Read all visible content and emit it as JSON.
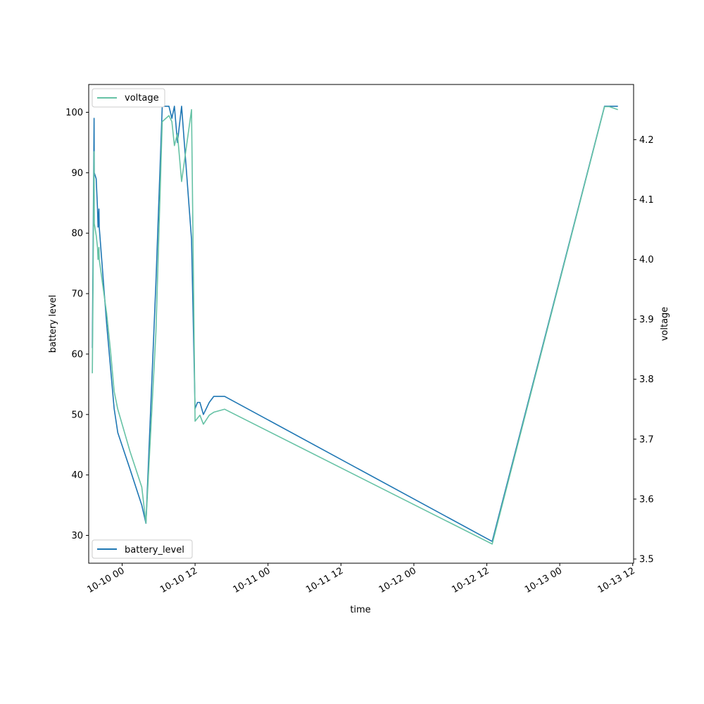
{
  "chart_data": {
    "type": "line",
    "xlabel": "time",
    "ylabel": "battery level",
    "y2label": "voltage",
    "legend_placement": {
      "battery_level": "lower-left",
      "voltage": "upper-left"
    },
    "grid": false,
    "x_ticks": [
      {
        "t": "2023-10-10T00:00",
        "label": "10-10 00"
      },
      {
        "t": "2023-10-10T12:00",
        "label": "10-10 12"
      },
      {
        "t": "2023-10-11T00:00",
        "label": "10-11 00"
      },
      {
        "t": "2023-10-11T12:00",
        "label": "10-11 12"
      },
      {
        "t": "2023-10-12T00:00",
        "label": "10-12 00"
      },
      {
        "t": "2023-10-12T12:00",
        "label": "10-12 12"
      },
      {
        "t": "2023-10-13T00:00",
        "label": "10-13 00"
      },
      {
        "t": "2023-10-13T12:00",
        "label": "10-13 12"
      }
    ],
    "xlim": [
      "2023-10-09T18:30",
      "2023-10-13T12:09"
    ],
    "ylim": [
      25.4,
      104.6
    ],
    "y2lim": [
      3.493,
      4.292
    ],
    "y_ticks": [
      30,
      40,
      50,
      60,
      70,
      80,
      90,
      100
    ],
    "y2_ticks": [
      3.5,
      3.6,
      3.7,
      3.8,
      3.9,
      4.0,
      4.1,
      4.2
    ],
    "series": [
      {
        "name": "battery_level",
        "axis": "left",
        "color": "#1f77b4",
        "points": [
          [
            "2023-10-09T19:06",
            61
          ],
          [
            "2023-10-09T19:23",
            99
          ],
          [
            "2023-10-09T19:25",
            90
          ],
          [
            "2023-10-09T19:44",
            89
          ],
          [
            "2023-10-09T19:57",
            84
          ],
          [
            "2023-10-09T20:02",
            81
          ],
          [
            "2023-10-09T20:11",
            84
          ],
          [
            "2023-10-09T20:14",
            81
          ],
          [
            "2023-10-09T21:27",
            65
          ],
          [
            "2023-10-09T22:04",
            58
          ],
          [
            "2023-10-09T22:41",
            51
          ],
          [
            "2023-10-09T23:17",
            47
          ],
          [
            "2023-10-10T01:17",
            41
          ],
          [
            "2023-10-10T03:14",
            35
          ],
          [
            "2023-10-10T03:55",
            32
          ],
          [
            "2023-10-10T05:34",
            72
          ],
          [
            "2023-10-10T06:36",
            101
          ],
          [
            "2023-10-10T07:42",
            101
          ],
          [
            "2023-10-10T08:11",
            99
          ],
          [
            "2023-10-10T08:36",
            101
          ],
          [
            "2023-10-10T09:06",
            95
          ],
          [
            "2023-10-10T09:47",
            101
          ],
          [
            "2023-10-10T11:25",
            79
          ],
          [
            "2023-10-10T12:00",
            51
          ],
          [
            "2023-10-10T12:24",
            52
          ],
          [
            "2023-10-10T12:48",
            52
          ],
          [
            "2023-10-10T13:22",
            50
          ],
          [
            "2023-10-10T14:20",
            52
          ],
          [
            "2023-10-10T15:05",
            53
          ],
          [
            "2023-10-10T16:52",
            53
          ],
          [
            "2023-10-12T12:53",
            29
          ],
          [
            "2023-10-13T07:22",
            101
          ],
          [
            "2023-10-13T08:09",
            101
          ],
          [
            "2023-10-13T09:34",
            101
          ]
        ]
      },
      {
        "name": "voltage",
        "axis": "right",
        "color": "#66c2a5",
        "points": [
          [
            "2023-10-09T19:06",
            3.81
          ],
          [
            "2023-10-09T19:23",
            4.18
          ],
          [
            "2023-10-09T19:25",
            4.06
          ],
          [
            "2023-10-09T19:44",
            4.04
          ],
          [
            "2023-10-09T19:57",
            4.02
          ],
          [
            "2023-10-09T20:02",
            4.0
          ],
          [
            "2023-10-09T20:11",
            4.02
          ],
          [
            "2023-10-09T20:14",
            4.0
          ],
          [
            "2023-10-09T21:27",
            3.91
          ],
          [
            "2023-10-09T22:04",
            3.85
          ],
          [
            "2023-10-09T22:41",
            3.78
          ],
          [
            "2023-10-09T23:17",
            3.75
          ],
          [
            "2023-10-10T01:17",
            3.68
          ],
          [
            "2023-10-10T03:14",
            3.62
          ],
          [
            "2023-10-10T03:55",
            3.56
          ],
          [
            "2023-10-10T05:34",
            3.88
          ],
          [
            "2023-10-10T06:36",
            4.23
          ],
          [
            "2023-10-10T07:42",
            4.24
          ],
          [
            "2023-10-10T08:11",
            4.23
          ],
          [
            "2023-10-10T08:36",
            4.19
          ],
          [
            "2023-10-10T09:06",
            4.21
          ],
          [
            "2023-10-10T09:47",
            4.13
          ],
          [
            "2023-10-10T11:25",
            4.25
          ],
          [
            "2023-10-10T12:00",
            3.73
          ],
          [
            "2023-10-10T12:24",
            3.735
          ],
          [
            "2023-10-10T12:48",
            3.74
          ],
          [
            "2023-10-10T13:22",
            3.725
          ],
          [
            "2023-10-10T14:20",
            3.74
          ],
          [
            "2023-10-10T15:05",
            3.745
          ],
          [
            "2023-10-10T16:52",
            3.75
          ],
          [
            "2023-10-12T12:53",
            3.525
          ],
          [
            "2023-10-13T07:22",
            4.255
          ],
          [
            "2023-10-13T08:09",
            4.255
          ],
          [
            "2023-10-13T09:34",
            4.25
          ]
        ]
      }
    ]
  }
}
